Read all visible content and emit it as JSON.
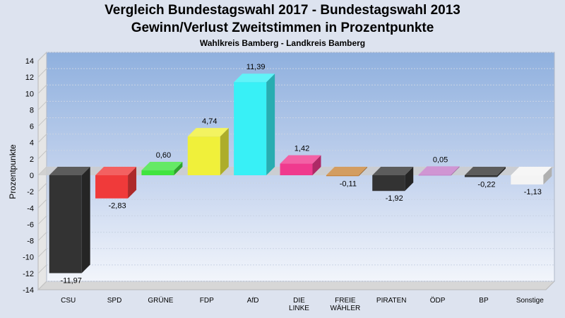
{
  "chart_data": {
    "type": "bar",
    "title": "Vergleich Bundestagswahl 2017 - Bundestagswahl 2013",
    "title2": "Gewinn/Verlust Zweitstimmen in Prozentpunkte",
    "subtitle": "Wahlkreis Bamberg - Landkreis Bamberg",
    "xlabel": "",
    "ylabel": "Prozentpunkte",
    "ylim": [
      -14,
      14
    ],
    "yticks": [
      14,
      12,
      10,
      8,
      6,
      4,
      2,
      0,
      -2,
      -4,
      -6,
      -8,
      -10,
      -12,
      -14
    ],
    "grid": true,
    "categories": [
      {
        "label": [
          "CSU"
        ],
        "value": -11.97,
        "text": "-11,97",
        "color": "#333333"
      },
      {
        "label": [
          "SPD"
        ],
        "value": -2.83,
        "text": "-2,83",
        "color": "#f03a3a"
      },
      {
        "label": [
          "GRÜNE"
        ],
        "value": 0.6,
        "text": "0,60",
        "color": "#3fe43f"
      },
      {
        "label": [
          "FDP"
        ],
        "value": 4.74,
        "text": "4,74",
        "color": "#f0f03a"
      },
      {
        "label": [
          "AfD"
        ],
        "value": 11.39,
        "text": "11,39",
        "color": "#38f0f6"
      },
      {
        "label": [
          "DIE",
          "LINKE"
        ],
        "value": 1.42,
        "text": "1,42",
        "color": "#f03a8e"
      },
      {
        "label": [
          "FREIE",
          "WÄHLER"
        ],
        "value": -0.11,
        "text": "-0,11",
        "color": "#c8843a"
      },
      {
        "label": [
          "PIRATEN"
        ],
        "value": -1.92,
        "text": "-1,92",
        "color": "#333333"
      },
      {
        "label": [
          "ÖDP"
        ],
        "value": 0.05,
        "text": "0,05",
        "color": "#c47ac8"
      },
      {
        "label": [
          "BP"
        ],
        "value": -0.22,
        "text": "-0,22",
        "color": "#333333"
      },
      {
        "label": [
          "Sonstige"
        ],
        "value": -1.13,
        "text": "-1,13",
        "color": "#f4f4f4"
      }
    ]
  }
}
